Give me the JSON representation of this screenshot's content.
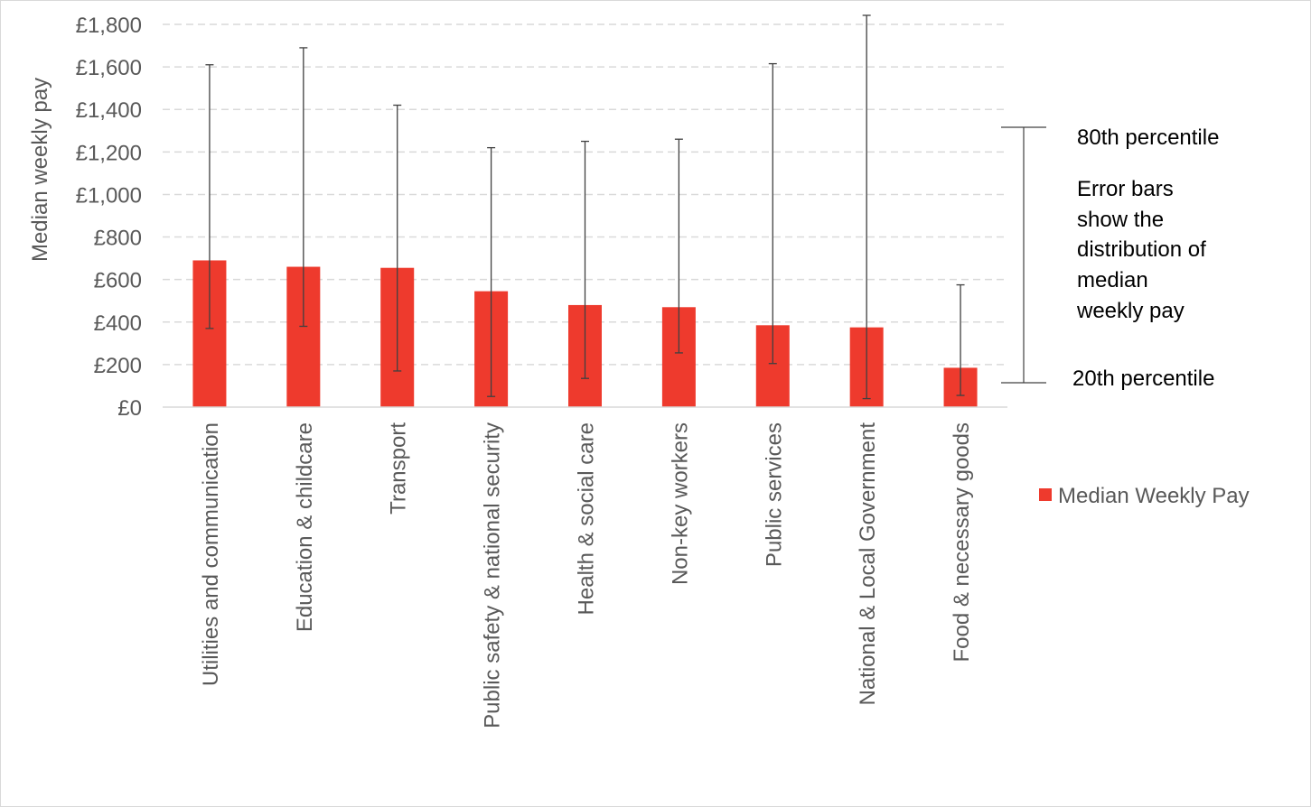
{
  "chart_data": {
    "type": "bar",
    "ylabel": "Median weekly pay",
    "ylim": [
      0,
      1800
    ],
    "ytick_values": [
      0,
      200,
      400,
      600,
      800,
      1000,
      1200,
      1400,
      1600,
      1800
    ],
    "ytick_labels": [
      "£0",
      "£200",
      "£400",
      "£600",
      "£800",
      "£1,000",
      "£1,200",
      "£1,400",
      "£1,600",
      "£1,800"
    ],
    "grid": true,
    "legend_position": "right",
    "categories": [
      "Utilities and communication",
      "Education & childcare",
      "Transport",
      "Public safety & national security",
      "Health & social care",
      "Non-key workers",
      "Public services",
      "National & Local Government",
      "Food & necessary goods"
    ],
    "series": [
      {
        "name": "Median Weekly Pay",
        "color": "#ee3a2d",
        "values": [
          690,
          660,
          655,
          545,
          480,
          470,
          385,
          375,
          185
        ],
        "error_low": [
          370,
          380,
          170,
          50,
          135,
          255,
          205,
          40,
          55
        ],
        "error_high": [
          1610,
          1690,
          1420,
          1220,
          1250,
          1260,
          1615,
          1870,
          575
        ]
      }
    ],
    "annotations": {
      "top_label": "80th percentile",
      "middle_lines": [
        "Error bars",
        "show the",
        "distribution of",
        "median",
        "weekly pay"
      ],
      "bottom_label": "20th percentile"
    }
  },
  "colors": {
    "bar": "#ee3a2d",
    "grid": "#d9d9d9",
    "axis_text": "#595959",
    "error_bar": "#404040"
  }
}
